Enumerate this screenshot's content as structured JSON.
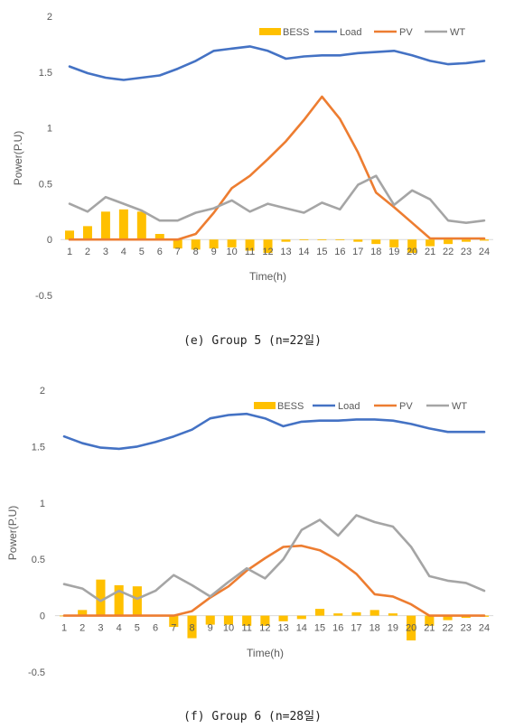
{
  "chart_data": [
    {
      "type": "bar+line",
      "caption": "(e) Group 5 (n=22일)",
      "xlabel": "Time(h)",
      "ylabel": "Power(P.U)",
      "ylim": [
        -0.5,
        2
      ],
      "yticks": [
        "2",
        "1.5",
        "1",
        "0.5",
        "0",
        "-0.5"
      ],
      "categories": [
        "1",
        "2",
        "3",
        "4",
        "5",
        "6",
        "7",
        "8",
        "9",
        "10",
        "11",
        "12",
        "13",
        "14",
        "15",
        "16",
        "17",
        "18",
        "19",
        "20",
        "21",
        "22",
        "23",
        "24"
      ],
      "legend_position": "top-right",
      "grid": false,
      "series": [
        {
          "name": "BESS",
          "type": "bar",
          "color": "#ffc000",
          "values": [
            0.08,
            0.12,
            0.25,
            0.27,
            0.25,
            0.05,
            -0.08,
            -0.09,
            -0.08,
            -0.07,
            -0.1,
            -0.12,
            -0.02,
            0,
            0,
            0,
            -0.02,
            -0.04,
            -0.07,
            -0.12,
            -0.06,
            -0.04,
            -0.02,
            -0.01
          ]
        },
        {
          "name": "Load",
          "type": "line",
          "color": "#4472c4",
          "values": [
            1.55,
            1.49,
            1.45,
            1.43,
            1.45,
            1.47,
            1.53,
            1.6,
            1.69,
            1.71,
            1.73,
            1.69,
            1.62,
            1.64,
            1.65,
            1.65,
            1.67,
            1.68,
            1.69,
            1.65,
            1.6,
            1.57,
            1.58,
            1.6
          ]
        },
        {
          "name": "PV",
          "type": "line",
          "color": "#ed7d31",
          "values": [
            0,
            0,
            0,
            0,
            0,
            0,
            0,
            0.05,
            0.24,
            0.46,
            0.57,
            0.72,
            0.88,
            1.07,
            1.28,
            1.08,
            0.78,
            0.42,
            0.29,
            0.15,
            0.01,
            0.01,
            0.01,
            0.01
          ]
        },
        {
          "name": "WT",
          "type": "line",
          "color": "#a5a5a5",
          "values": [
            0.32,
            0.25,
            0.38,
            0.32,
            0.26,
            0.17,
            0.17,
            0.24,
            0.28,
            0.35,
            0.25,
            0.32,
            0.28,
            0.24,
            0.33,
            0.27,
            0.49,
            0.57,
            0.31,
            0.44,
            0.36,
            0.17,
            0.15,
            0.17
          ]
        }
      ]
    },
    {
      "type": "bar+line",
      "caption": "(f) Group 6 (n=28일)",
      "xlabel": "Time(h)",
      "ylabel": "Power(P.U)",
      "ylim": [
        -0.5,
        2
      ],
      "yticks": [
        "2",
        "1.5",
        "1",
        "0.5",
        "0",
        "-0.5"
      ],
      "categories": [
        "1",
        "2",
        "3",
        "4",
        "5",
        "6",
        "7",
        "8",
        "9",
        "10",
        "11",
        "12",
        "13",
        "14",
        "15",
        "16",
        "17",
        "18",
        "19",
        "20",
        "21",
        "22",
        "23",
        "24"
      ],
      "legend_position": "top-right",
      "grid": false,
      "series": [
        {
          "name": "BESS",
          "type": "bar",
          "color": "#ffc000",
          "values": [
            0,
            0.05,
            0.32,
            0.27,
            0.26,
            0,
            -0.1,
            -0.2,
            -0.08,
            -0.08,
            -0.09,
            -0.09,
            -0.05,
            -0.03,
            0.06,
            0.02,
            0.03,
            0.05,
            0.02,
            -0.22,
            -0.09,
            -0.04,
            -0.02,
            -0.01
          ]
        },
        {
          "name": "Load",
          "type": "line",
          "color": "#4472c4",
          "values": [
            1.59,
            1.53,
            1.49,
            1.48,
            1.5,
            1.54,
            1.59,
            1.65,
            1.75,
            1.78,
            1.79,
            1.75,
            1.68,
            1.72,
            1.73,
            1.73,
            1.74,
            1.74,
            1.73,
            1.7,
            1.66,
            1.63,
            1.63,
            1.63
          ]
        },
        {
          "name": "PV",
          "type": "line",
          "color": "#ed7d31",
          "values": [
            0,
            0,
            0,
            0,
            0,
            0,
            0,
            0.04,
            0.16,
            0.26,
            0.4,
            0.51,
            0.61,
            0.62,
            0.58,
            0.49,
            0.37,
            0.19,
            0.17,
            0.1,
            0,
            0,
            0,
            0
          ]
        },
        {
          "name": "WT",
          "type": "line",
          "color": "#a5a5a5",
          "values": [
            0.28,
            0.24,
            0.13,
            0.22,
            0.15,
            0.22,
            0.36,
            0.27,
            0.17,
            0.3,
            0.42,
            0.33,
            0.5,
            0.76,
            0.85,
            0.71,
            0.89,
            0.83,
            0.79,
            0.61,
            0.35,
            0.31,
            0.29,
            0.22
          ]
        }
      ]
    }
  ]
}
